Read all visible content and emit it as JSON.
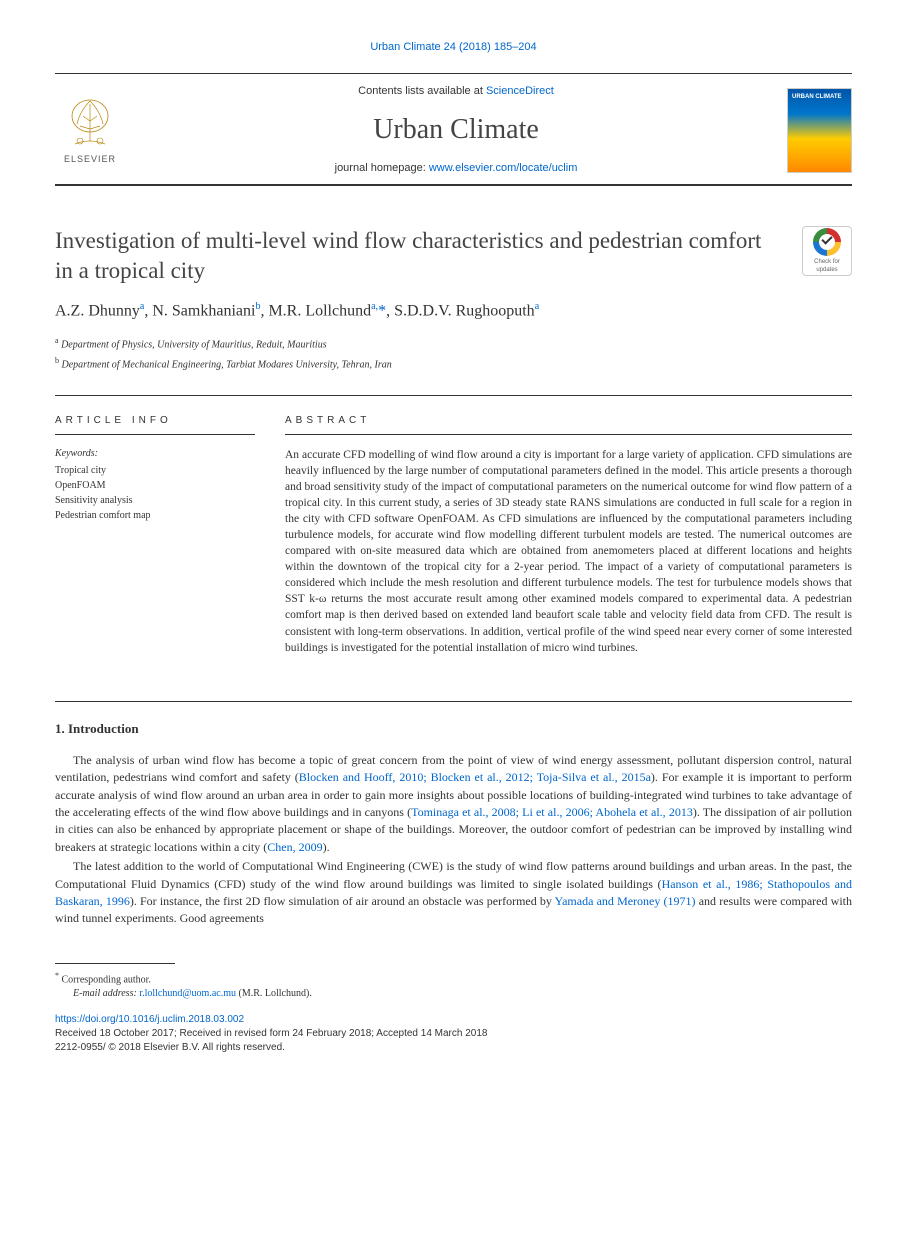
{
  "citation": "Urban Climate 24 (2018) 185–204",
  "header": {
    "contents_prefix": "Contents lists available at ",
    "contents_link": "ScienceDirect",
    "journal_name": "Urban Climate",
    "homepage_prefix": "journal homepage: ",
    "homepage_url": "www.elsevier.com/locate/uclim",
    "elsevier_label": "ELSEVIER",
    "cover_label": "URBAN CLIMATE"
  },
  "title": "Investigation of multi-level wind flow characteristics and pedestrian comfort in a tropical city",
  "check_updates": "Check for updates",
  "authors_html": "A.Z. Dhunny<sup>a</sup>, N. Samkhaniani<sup>b</sup>, M.R. Lollchund<sup>a,</sup><span class='star'>*</span>, S.D.D.V. Rughooputh<sup>a</sup>",
  "affiliations": [
    {
      "sup": "a",
      "text": "Department of Physics, University of Mauritius, Reduit, Mauritius"
    },
    {
      "sup": "b",
      "text": "Department of Mechanical Engineering, Tarbiat Modares University, Tehran, Iran"
    }
  ],
  "article_info": {
    "heading": "ARTICLE INFO",
    "keywords_label": "Keywords:",
    "keywords": [
      "Tropical city",
      "OpenFOAM",
      "Sensitivity analysis",
      "Pedestrian comfort map"
    ]
  },
  "abstract": {
    "heading": "ABSTRACT",
    "text": "An accurate CFD modelling of wind flow around a city is important for a large variety of application. CFD simulations are heavily influenced by the large number of computational parameters defined in the model. This article presents a thorough and broad sensitivity study of the impact of computational parameters on the numerical outcome for wind flow pattern of a tropical city. In this current study, a series of 3D steady state RANS simulations are conducted in full scale for a region in the city with CFD software OpenFOAM. As CFD simulations are influenced by the computational parameters including turbulence models, for accurate wind flow modelling different turbulent models are tested. The numerical outcomes are compared with on-site measured data which are obtained from anemometers placed at different locations and heights within the downtown of the tropical city for a 2-year period. The impact of a variety of computational parameters is considered which include the mesh resolution and different turbulence models. The test for turbulence models shows that SST k-ω returns the most accurate result among other examined models compared to experimental data. A pedestrian comfort map is then derived based on extended land beaufort scale table and velocity field data from CFD. The result is consistent with long-term observations. In addition, vertical profile of the wind speed near every corner of some interested buildings is investigated for the potential installation of micro wind turbines."
  },
  "section1": {
    "heading": "1. Introduction",
    "para1_pre": "The analysis of urban wind flow has become a topic of great concern from the point of view of wind energy assessment, pollutant dispersion control, natural ventilation, pedestrians wind comfort and safety (",
    "para1_link1": "Blocken and Hooff, 2010; Blocken et al., 2012; Toja-Silva et al., 2015a",
    "para1_mid1": "). For example it is important to perform accurate analysis of wind flow around an urban area in order to gain more insights about possible locations of building-integrated wind turbines to take advantage of the accelerating effects of the wind flow above buildings and in canyons (",
    "para1_link2": "Tominaga et al., 2008; Li et al., 2006; Abohela et al., 2013",
    "para1_mid2": "). The dissipation of air pollution in cities can also be enhanced by appropriate placement or shape of the buildings. Moreover, the outdoor comfort of pedestrian can be improved by installing wind breakers at strategic locations within a city (",
    "para1_link3": "Chen, 2009",
    "para1_post": ").",
    "para2_pre": "The latest addition to the world of Computational Wind Engineering (CWE) is the study of wind flow patterns around buildings and urban areas. In the past, the Computational Fluid Dynamics (CFD) study of the wind flow around buildings was limited to single isolated buildings (",
    "para2_link1": "Hanson et al., 1986; Stathopoulos and Baskaran, 1996",
    "para2_mid1": "). For instance, the first 2D flow simulation of air around an obstacle was performed by ",
    "para2_link2": "Yamada and Meroney (1971)",
    "para2_post": " and results were compared with wind tunnel experiments. Good agreements"
  },
  "footer": {
    "corr_label": "Corresponding author.",
    "email_label": "E-mail address:",
    "email": "r.lollchund@uom.ac.mu",
    "email_suffix": " (M.R. Lollchund).",
    "doi": "https://doi.org/10.1016/j.uclim.2018.03.002",
    "dates": "Received 18 October 2017; Received in revised form 24 February 2018; Accepted 14 March 2018",
    "copyright": "2212-0955/ © 2018 Elsevier B.V. All rights reserved."
  },
  "colors": {
    "link": "#0066cc",
    "text": "#333333",
    "background": "#ffffff"
  }
}
